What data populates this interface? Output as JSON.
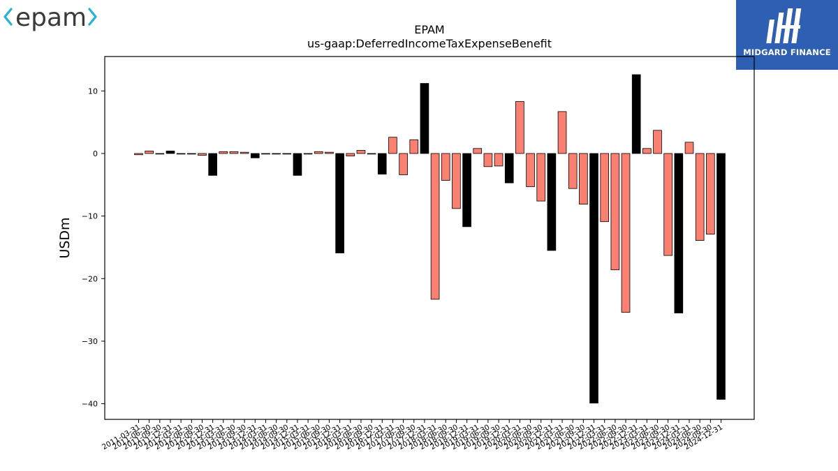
{
  "branding": {
    "left_logo": "epam",
    "right_logo": "MIDGARD FINANCE",
    "left_logo_color": "#3a3a3a",
    "left_logo_accent": "#27b0d6",
    "right_logo_bg": "#2f5fb3"
  },
  "chart_data": {
    "type": "bar",
    "title": "EPAM",
    "subtitle": "us-gaap:DeferredIncomeTaxExpenseBenefit",
    "ylabel": "USDm",
    "xlabel": "",
    "ylim": [
      -42.5,
      15.5
    ],
    "yticks": [
      10,
      0,
      -10,
      -20,
      -30,
      -40
    ],
    "grid": false,
    "legend": "none",
    "colors": {
      "quarter": "#fa8072",
      "annual": "#000000",
      "edge": "#000000"
    },
    "categories": [
      "2011-03-31",
      "2011-06-30",
      "2011-09-30",
      "2011-12-31",
      "2012-03-31",
      "2012-06-30",
      "2012-09-30",
      "2012-12-31",
      "2013-03-31",
      "2013-06-30",
      "2013-09-30",
      "2013-12-31",
      "2014-03-31",
      "2014-06-30",
      "2014-09-30",
      "2014-12-31",
      "2015-03-31",
      "2015-06-30",
      "2015-09-30",
      "2015-12-31",
      "2016-03-31",
      "2016-06-30",
      "2016-09-30",
      "2016-12-31",
      "2017-03-31",
      "2017-06-30",
      "2017-09-30",
      "2017-12-31",
      "2018-03-31",
      "2018-06-30",
      "2018-09-30",
      "2018-12-31",
      "2019-03-31",
      "2019-06-30",
      "2019-09-30",
      "2019-12-31",
      "2020-03-31",
      "2020-06-30",
      "2020-09-30",
      "2020-12-31",
      "2021-03-31",
      "2021-06-30",
      "2021-09-30",
      "2021-12-31",
      "2022-03-31",
      "2022-06-30",
      "2022-09-30",
      "2022-12-31",
      "2023-03-31",
      "2023-06-30",
      "2023-09-30",
      "2023-12-31",
      "2024-03-31",
      "2024-06-30",
      "2024-09-30",
      "2024-12-31"
    ],
    "values": [
      -0.2,
      0.4,
      -0.1,
      0.4,
      -0.1,
      -0.1,
      -0.3,
      -3.5,
      0.3,
      0.3,
      0.2,
      -0.7,
      -0.1,
      -0.1,
      -0.1,
      -3.5,
      -0.1,
      0.3,
      0.2,
      -15.9,
      -0.4,
      0.5,
      -0.1,
      -3.3,
      2.6,
      -3.4,
      2.2,
      11.2,
      -23.3,
      -4.3,
      -8.8,
      -11.7,
      0.8,
      -2.1,
      -2.0,
      -4.7,
      8.3,
      -5.3,
      -7.6,
      -15.5,
      6.7,
      -5.6,
      -8.1,
      -39.9,
      -10.9,
      -18.6,
      -25.4,
      12.6,
      0.8,
      3.7,
      -16.3,
      -25.5,
      1.8,
      -13.9,
      -12.9,
      -39.3
    ],
    "annual": [
      false,
      false,
      false,
      true,
      false,
      false,
      false,
      true,
      false,
      false,
      false,
      true,
      false,
      false,
      false,
      true,
      false,
      false,
      false,
      true,
      false,
      false,
      false,
      true,
      false,
      false,
      false,
      true,
      false,
      false,
      false,
      true,
      false,
      false,
      false,
      true,
      false,
      false,
      false,
      true,
      false,
      false,
      false,
      true,
      false,
      false,
      false,
      true,
      false,
      false,
      false,
      true,
      false,
      false,
      false,
      true
    ]
  }
}
